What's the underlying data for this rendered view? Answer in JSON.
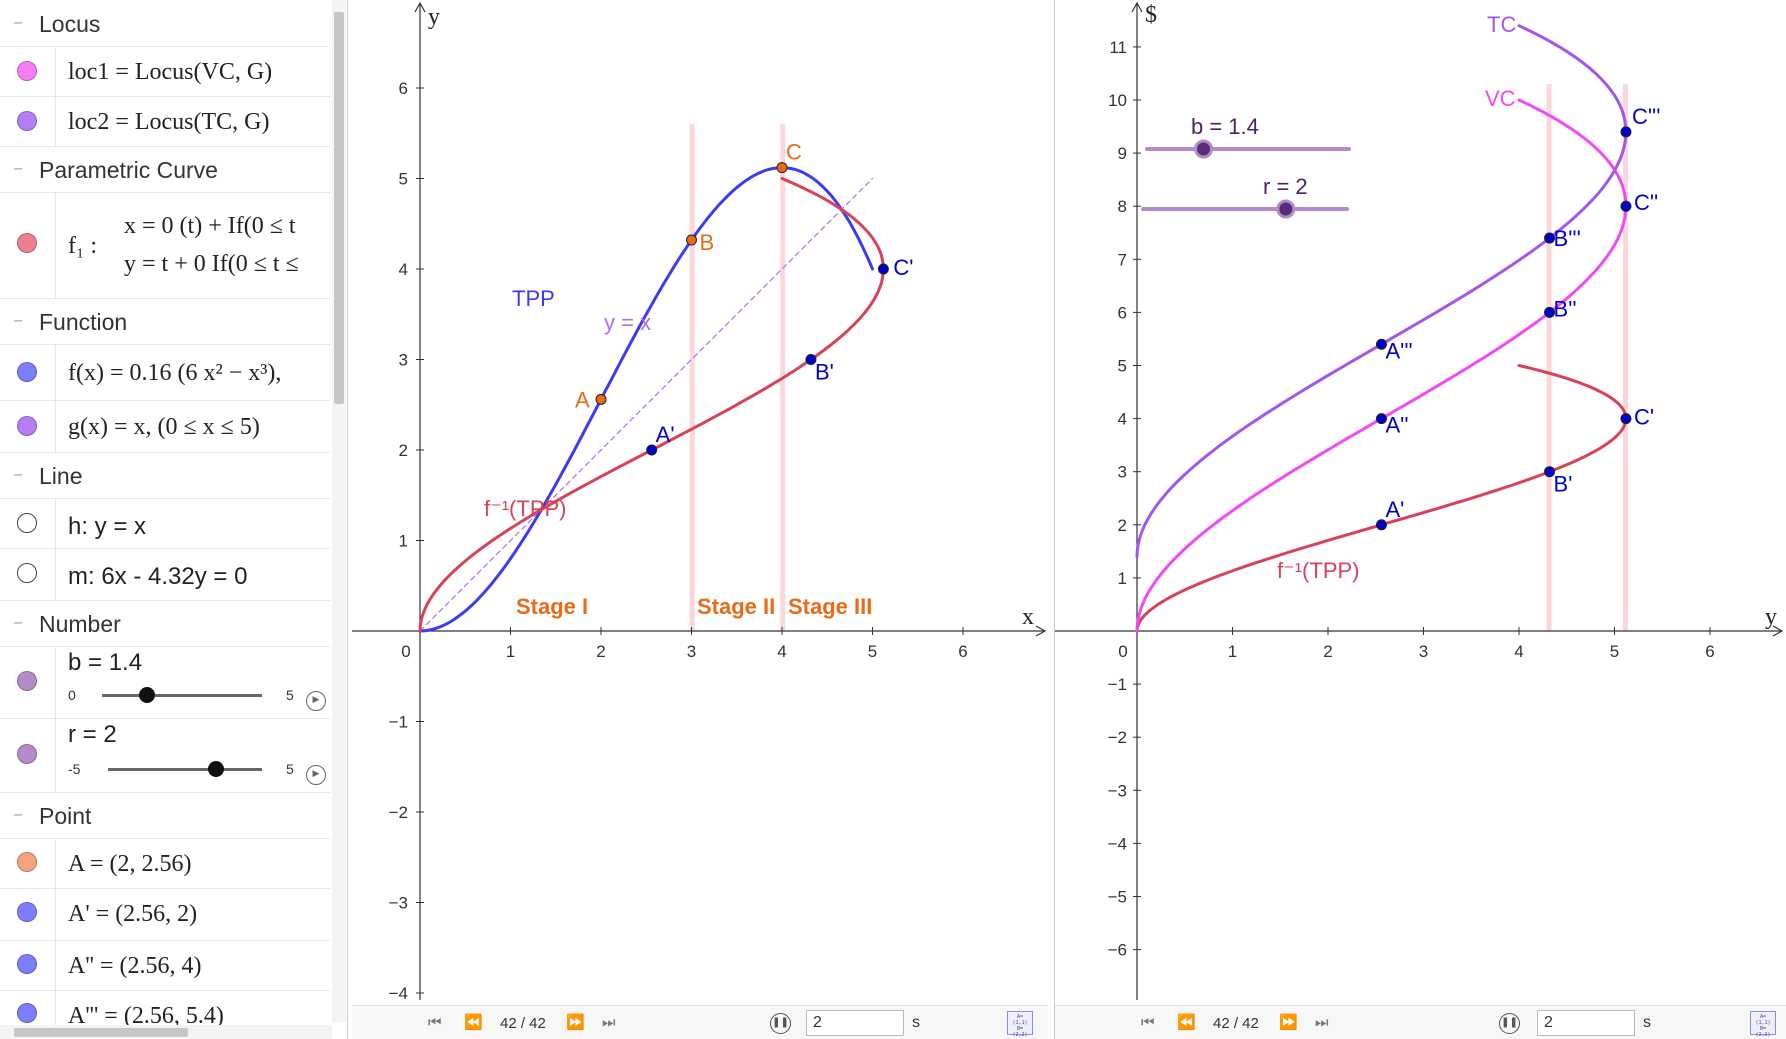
{
  "algebra": {
    "collapse_glyph": "−",
    "sections": {
      "locus": "Locus",
      "parametric": "Parametric Curve",
      "function": "Function",
      "line": "Line",
      "number": "Number",
      "point": "Point"
    },
    "items": {
      "loc1": {
        "text": "loc1 = Locus(VC, G)",
        "color": "#f57ef5"
      },
      "loc2": {
        "text": "loc2 = Locus(TC, G)",
        "color": "#b57ef5"
      },
      "f1_name": "f₁ :",
      "f1_x": "x = 0 (t) + If(0 ≤ t",
      "f1_y": "y = t + 0 If(0 ≤ t ≤",
      "f1_color": "#ee7f8f",
      "f": {
        "text": "f(x) = 0.16 (6 x² − x³),",
        "color": "#7d7dff"
      },
      "g": {
        "text": "g(x) = x,    (0 ≤ x ≤ 5)",
        "color": "#b57ef5"
      },
      "h": {
        "text": "h: y = x"
      },
      "m": {
        "text": "m: 6x - 4.32y = 0"
      },
      "b": {
        "text": "b = 1.4",
        "min": "0",
        "max": "5",
        "value": 1.4,
        "color": "#b48ac8"
      },
      "r": {
        "text": "r = 2",
        "min": "-5",
        "max": "5",
        "value": 2,
        "color": "#b48ac8"
      },
      "A": {
        "text": "A = (2, 2.56)",
        "color": "#f5a27e"
      },
      "A1": {
        "text": "A' = (2.56, 2)",
        "color": "#7d7dff"
      },
      "A2": {
        "text": "A'' = (2.56, 4)",
        "color": "#7d7dff"
      },
      "A3": {
        "text": "A''' = (2.56, 5.4)",
        "color": "#7d7dff"
      }
    }
  },
  "view1": {
    "x_axis_name": "x",
    "y_axis_name": "y",
    "x_ticks": [
      "0",
      "1",
      "2",
      "3",
      "4",
      "5",
      "6"
    ],
    "y_ticks": [
      "-4",
      "-3",
      "-2",
      "-1",
      "1",
      "2",
      "3",
      "4",
      "5",
      "6"
    ],
    "labels": {
      "TPP": "TPP",
      "finv": "f⁻¹(TPP)",
      "yx": "y = x",
      "A": "A",
      "B": "B",
      "C": "C",
      "A1": "A'",
      "B1": "B'",
      "C1": "C'",
      "stage1": "Stage I",
      "stage2": "Stage II",
      "stage3": "Stage III"
    },
    "colors": {
      "tpp": "#3b3bf2",
      "finv": "#d94158",
      "yx": "#b06cf0",
      "orange": "#ea6b16",
      "point": "#0000cc",
      "band": "#f9c6cc"
    }
  },
  "view2": {
    "x_axis_name": "y",
    "y_axis_name": "$",
    "x_ticks": [
      "0",
      "1",
      "2",
      "3",
      "4",
      "5",
      "6"
    ],
    "y_ticks": [
      "-6",
      "-5",
      "-4",
      "-3",
      "-2",
      "-1",
      "1",
      "2",
      "3",
      "4",
      "5",
      "6",
      "7",
      "8",
      "9",
      "10",
      "11"
    ],
    "labels": {
      "TC": "TC",
      "VC": "VC",
      "finv": "f⁻¹(TPP)",
      "A1": "A'",
      "A2": "A''",
      "A3": "A'''",
      "B1": "B'",
      "B2": "B''",
      "B3": "B'''",
      "C1": "C'",
      "C2": "C''",
      "C3": "C'''",
      "slider_b": "b = 1.4",
      "slider_r": "r = 2"
    },
    "colors": {
      "tc": "#a455ee",
      "vc": "#f548f5",
      "finv": "#d94158",
      "point": "#0000cc",
      "band": "#f9c6cc",
      "slider": "#b48ac8"
    }
  },
  "playback": {
    "counter": "42 / 42",
    "step_value": "2",
    "unit": "s",
    "first_icon": "skip-first-icon",
    "prev_icon": "step-back-icon",
    "next_icon": "step-forward-icon",
    "last_icon": "skip-last-icon",
    "pause_icon": "pause-icon",
    "table_icon": "table-view-icon"
  }
}
